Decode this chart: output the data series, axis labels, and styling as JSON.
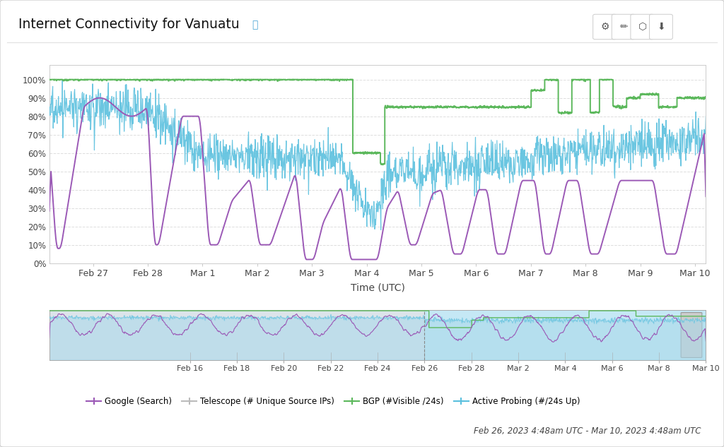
{
  "title": "Internet Connectivity for Vanuatu",
  "title_icon": "ⓘ",
  "xlabel": "Time (UTC)",
  "main_xtick_labels": [
    "Feb 27",
    "Feb 28",
    "Mar 1",
    "Mar 2",
    "Mar 3",
    "Mar 4",
    "Mar 5",
    "Mar 6",
    "Mar 7",
    "Mar 8",
    "Mar 9",
    "Mar 10"
  ],
  "nav_xtick_labels": [
    "Feb 16",
    "Feb 18",
    "Feb 20",
    "Feb 22",
    "Feb 24",
    "Feb 26",
    "Feb 28",
    "Mar 2",
    "Mar 4",
    "Mar 6",
    "Mar 8",
    "Mar 10"
  ],
  "date_range_label": "Feb 26, 2023 4:48am UTC - Mar 10, 2023 4:48am UTC",
  "colors": {
    "google": "#9B59B6",
    "telescope": "#BBBBBB",
    "bgp": "#5cb85c",
    "active": "#5bc0de",
    "grid": "#e0e0e0",
    "nav_bg_left": "#e8eef2",
    "nav_bg_right": "#cce9f5",
    "nav_fill": "#a8d8ea"
  },
  "legend_labels": [
    "Google (Search)",
    "Telescope (# Unique Source IPs)",
    "BGP (#Visible /24s)",
    "Active Probing (#/24s Up)"
  ]
}
